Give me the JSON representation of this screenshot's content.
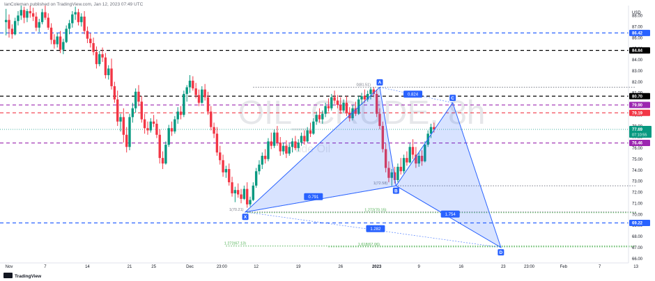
{
  "header": {
    "publisher": "IanColeman published on TradingView.com, Jan 12, 2023 07:49 UTC"
  },
  "footer": {
    "logo_text": "TradingView"
  },
  "watermark": {
    "symbol": "OIL_CRUDE, 8h",
    "name": "Crude Oil"
  },
  "chart_data": {
    "type": "candlestick",
    "currency": "USD",
    "y_range": [
      65.6,
      88.9
    ],
    "y_ticks": [
      66.0,
      67.0,
      68.0,
      69.0,
      70.0,
      71.0,
      72.0,
      73.0,
      74.0,
      75.0,
      76.0,
      77.0,
      78.0,
      79.0,
      80.0,
      81.0,
      82.0,
      83.0,
      84.0,
      85.0,
      86.0,
      87.0,
      88.0
    ],
    "x_ticks": [
      {
        "label": "Nov",
        "day": 0
      },
      {
        "label": "7",
        "day": 6
      },
      {
        "label": "14",
        "day": 13
      },
      {
        "label": "21",
        "day": 20
      },
      {
        "label": "25",
        "day": 24
      },
      {
        "label": "Dec",
        "day": 30
      },
      {
        "label": "23:00",
        "day": 35.3
      },
      {
        "label": "12",
        "day": 41
      },
      {
        "label": "19",
        "day": 48
      },
      {
        "label": "26",
        "day": 55
      },
      {
        "label": "2023",
        "day": 61
      },
      {
        "label": "9",
        "day": 68
      },
      {
        "label": "16",
        "day": 75
      },
      {
        "label": "23",
        "day": 82
      },
      {
        "label": "23:00",
        "day": 86.3
      },
      {
        "label": "Feb",
        "day": 92
      },
      {
        "label": "7",
        "day": 98
      },
      {
        "label": "13",
        "day": 104
      }
    ],
    "price_lines": [
      {
        "value": 86.42,
        "label": "86.42",
        "style": "dashed",
        "color": "#2962ff"
      },
      {
        "value": 84.84,
        "label": "84.84",
        "style": "dashed",
        "color": "#000000"
      },
      {
        "value": 80.7,
        "label": "80.70",
        "style": "dashed",
        "color": "#000000"
      },
      {
        "value": 79.9,
        "label": "79.90",
        "style": "dashed",
        "color": "#9c27b0"
      },
      {
        "value": 79.19,
        "label": "79.19",
        "style": "dashed",
        "color": "#f23645"
      },
      {
        "value": 76.46,
        "label": "76.46",
        "style": "dashed",
        "color": "#9c27b0"
      },
      {
        "value": 69.22,
        "label": "69.22",
        "style": "dashed",
        "color": "#2962ff"
      }
    ],
    "current_price": {
      "value": 77.69,
      "label": "77.69",
      "countdown": "07:10:55",
      "color": "#089981"
    },
    "harmonic_pattern": {
      "color": "#2962ff",
      "points": [
        {
          "name": "X",
          "day": 39.2,
          "value": 70.21
        },
        {
          "name": "A",
          "day": 61.5,
          "value": 81.51
        },
        {
          "name": "B",
          "day": 64.2,
          "value": 72.58
        },
        {
          "name": "C",
          "day": 73.6,
          "value": 80.1
        },
        {
          "name": "D",
          "day": 81.6,
          "value": 67.0
        }
      ],
      "ratios": [
        {
          "label": "0.791",
          "day": 50.5,
          "value": 71.6
        },
        {
          "label": "0.824",
          "day": 67.0,
          "value": 80.88
        },
        {
          "label": "1.754",
          "day": 73.2,
          "value": 70.02
        },
        {
          "label": "1.282",
          "day": 60.8,
          "value": 68.7
        }
      ]
    },
    "fib_levels": [
      {
        "text": "0(81.51)",
        "value": 81.51,
        "color": "#787b86",
        "from": 40.5,
        "to": 104,
        "text_day": 60.0,
        "text_right": true
      },
      {
        "text": "1(72.58)",
        "value": 72.58,
        "color": "#787b86",
        "from": 64.5,
        "to": 104,
        "text_day": 62.8,
        "text_right": true
      },
      {
        "text": "1(70.21)",
        "value": 70.21,
        "color": "#787b86",
        "from": 39.5,
        "to": 104,
        "text_day": 38.9,
        "text_right": true
      },
      {
        "text": "1.272(70.15)",
        "value": 70.15,
        "color": "#4caf50",
        "from": 39.5,
        "to": 104,
        "text_day": 62.6,
        "text_right": true
      },
      {
        "text": "1.272(67.13)",
        "value": 67.13,
        "color": "#4caf50",
        "from": 36.0,
        "to": 104,
        "text_day": 39.3,
        "text_right": true
      },
      {
        "text": "1.618(67.06)",
        "value": 67.06,
        "color": "#4caf50",
        "from": 53.0,
        "to": 104,
        "text_day": 61.5,
        "text_right": true
      }
    ],
    "candles": [
      [
        -0.5,
        87.4,
        88.6,
        86.2,
        87.6
      ],
      [
        0,
        87.6,
        88.1,
        86.0,
        86.8
      ],
      [
        0.5,
        86.8,
        87.2,
        85.9,
        86.3
      ],
      [
        1,
        86.3,
        87.8,
        86.2,
        87.5
      ],
      [
        1.5,
        87.5,
        88.4,
        87.1,
        88.0
      ],
      [
        2,
        88.0,
        88.9,
        87.6,
        88.5
      ],
      [
        2.5,
        88.5,
        88.8,
        87.3,
        87.8
      ],
      [
        3,
        87.8,
        88.6,
        87.4,
        88.4
      ],
      [
        3.5,
        88.4,
        88.9,
        87.8,
        88.2
      ],
      [
        4,
        88.2,
        88.7,
        87.5,
        87.9
      ],
      [
        4.5,
        87.9,
        88.3,
        86.6,
        86.9
      ],
      [
        5,
        86.9,
        87.7,
        86.5,
        87.4
      ],
      [
        5.5,
        87.4,
        88.6,
        87.2,
        88.3
      ],
      [
        6,
        88.3,
        88.9,
        87.6,
        87.8
      ],
      [
        6.5,
        87.8,
        88.2,
        86.7,
        86.9
      ],
      [
        7,
        86.9,
        87.3,
        85.4,
        85.8
      ],
      [
        7.5,
        85.8,
        86.3,
        85.0,
        85.4
      ],
      [
        8,
        85.4,
        86.4,
        85.1,
        86.1
      ],
      [
        8.5,
        86.1,
        86.6,
        84.6,
        84.9
      ],
      [
        9,
        84.9,
        85.9,
        84.5,
        85.6
      ],
      [
        9.5,
        85.6,
        87.1,
        85.5,
        86.8
      ],
      [
        10,
        86.8,
        87.6,
        86.3,
        87.3
      ],
      [
        10.5,
        87.3,
        88.4,
        86.9,
        88.1
      ],
      [
        11,
        88.1,
        88.8,
        87.6,
        88.3
      ],
      [
        11.5,
        88.3,
        88.6,
        87.1,
        87.4
      ],
      [
        12,
        87.4,
        88.2,
        87.0,
        87.9
      ],
      [
        12.5,
        87.9,
        88.4,
        86.3,
        86.6
      ],
      [
        13,
        86.6,
        87.0,
        85.5,
        85.9
      ],
      [
        13.5,
        85.9,
        86.4,
        85.1,
        85.5
      ],
      [
        14,
        85.5,
        86.0,
        84.4,
        84.7
      ],
      [
        14.5,
        84.7,
        85.2,
        83.2,
        83.6
      ],
      [
        15,
        83.6,
        84.8,
        83.4,
        84.5
      ],
      [
        15.5,
        84.5,
        85.1,
        83.8,
        84.2
      ],
      [
        16,
        84.2,
        84.6,
        82.3,
        82.6
      ],
      [
        16.5,
        82.6,
        83.5,
        82.2,
        83.2
      ],
      [
        17,
        83.2,
        84.1,
        81.3,
        81.6
      ],
      [
        17.5,
        81.6,
        82.0,
        80.1,
        80.4
      ],
      [
        18,
        80.4,
        81.2,
        78.0,
        78.4
      ],
      [
        18.5,
        78.4,
        79.1,
        77.5,
        78.8
      ],
      [
        19,
        78.8,
        79.6,
        76.5,
        77.2
      ],
      [
        19.5,
        77.2,
        77.9,
        75.6,
        76.1
      ],
      [
        20,
        76.1,
        79.1,
        75.8,
        78.8
      ],
      [
        20.5,
        78.8,
        80.1,
        78.3,
        79.6
      ],
      [
        21,
        79.6,
        81.4,
        79.2,
        81.1
      ],
      [
        21.5,
        81.1,
        81.7,
        79.8,
        80.2
      ],
      [
        22,
        80.2,
        80.7,
        78.3,
        78.6
      ],
      [
        22.5,
        78.6,
        79.1,
        77.3,
        77.8
      ],
      [
        23,
        77.8,
        78.4,
        77.2,
        77.6
      ],
      [
        23.5,
        77.6,
        78.7,
        77.4,
        78.4
      ],
      [
        24,
        78.4,
        79.0,
        77.9,
        78.2
      ],
      [
        24.5,
        78.2,
        78.6,
        76.9,
        77.2
      ],
      [
        25,
        77.2,
        77.7,
        74.6,
        75.1
      ],
      [
        25.5,
        75.1,
        75.7,
        74.1,
        74.6
      ],
      [
        26,
        74.6,
        76.6,
        74.5,
        76.3
      ],
      [
        26.5,
        76.3,
        78.1,
        76.1,
        77.8
      ],
      [
        27,
        77.8,
        78.4,
        77.1,
        77.5
      ],
      [
        27.5,
        77.5,
        78.9,
        77.3,
        78.6
      ],
      [
        28,
        78.6,
        79.7,
        78.2,
        79.3
      ],
      [
        28.5,
        79.3,
        79.8,
        78.6,
        79.0
      ],
      [
        29,
        79.0,
        81.2,
        78.8,
        80.9
      ],
      [
        29.5,
        80.9,
        81.7,
        80.2,
        81.5
      ],
      [
        30,
        81.5,
        82.6,
        81.0,
        82.1
      ],
      [
        30.5,
        82.1,
        82.5,
        81.2,
        81.4
      ],
      [
        31,
        81.4,
        81.9,
        80.5,
        80.8
      ],
      [
        31.5,
        80.8,
        81.3,
        79.8,
        80.1
      ],
      [
        32,
        80.1,
        81.6,
        80.0,
        81.3
      ],
      [
        32.5,
        81.3,
        81.8,
        80.3,
        80.6
      ],
      [
        33,
        80.6,
        81.1,
        79.0,
        79.3
      ],
      [
        33.5,
        79.3,
        79.8,
        77.6,
        77.9
      ],
      [
        34,
        77.9,
        78.3,
        76.9,
        77.3
      ],
      [
        34.5,
        77.3,
        77.9,
        75.3,
        75.6
      ],
      [
        35,
        75.6,
        76.2,
        74.5,
        74.9
      ],
      [
        35.5,
        74.9,
        75.4,
        73.4,
        73.8
      ],
      [
        36,
        73.8,
        74.4,
        73.3,
        74.1
      ],
      [
        36.5,
        74.1,
        74.6,
        72.6,
        72.9
      ],
      [
        37,
        72.9,
        73.4,
        71.6,
        71.9
      ],
      [
        37.5,
        71.9,
        72.5,
        71.1,
        72.2
      ],
      [
        38,
        72.2,
        72.8,
        71.5,
        71.8
      ],
      [
        38.5,
        71.8,
        72.3,
        71.0,
        71.4
      ],
      [
        39,
        71.4,
        72.6,
        71.3,
        72.3
      ],
      [
        39.5,
        72.3,
        72.9,
        70.6,
        70.9
      ],
      [
        40,
        70.9,
        71.6,
        70.7,
        71.3
      ],
      [
        40.5,
        71.3,
        72.9,
        71.2,
        72.6
      ],
      [
        41,
        72.6,
        74.2,
        72.4,
        73.9
      ],
      [
        41.5,
        73.9,
        74.9,
        73.6,
        74.5
      ],
      [
        42,
        74.5,
        75.6,
        74.1,
        75.3
      ],
      [
        42.5,
        75.3,
        75.9,
        74.6,
        75.0
      ],
      [
        43,
        75.0,
        76.9,
        74.8,
        76.6
      ],
      [
        43.5,
        76.6,
        77.4,
        75.9,
        76.2
      ],
      [
        44,
        76.2,
        77.7,
        76.0,
        77.4
      ],
      [
        44.5,
        77.4,
        78.0,
        76.2,
        76.5
      ],
      [
        45,
        76.5,
        77.0,
        75.3,
        75.7
      ],
      [
        45.5,
        75.7,
        76.5,
        75.4,
        76.2
      ],
      [
        46,
        76.2,
        76.7,
        75.1,
        75.5
      ],
      [
        46.5,
        75.5,
        76.4,
        75.3,
        76.1
      ],
      [
        47,
        76.1,
        76.9,
        75.6,
        76.6
      ],
      [
        47.5,
        76.6,
        77.1,
        75.8,
        76.0
      ],
      [
        48,
        76.0,
        76.8,
        75.7,
        76.5
      ],
      [
        48.5,
        76.5,
        77.4,
        76.2,
        77.1
      ],
      [
        49,
        77.1,
        77.6,
        76.3,
        76.6
      ],
      [
        49.5,
        76.6,
        77.9,
        76.5,
        77.6
      ],
      [
        50,
        77.6,
        78.3,
        77.0,
        77.3
      ],
      [
        50.5,
        77.3,
        78.7,
        77.2,
        78.4
      ],
      [
        51,
        78.4,
        79.3,
        78.1,
        79.0
      ],
      [
        51.5,
        79.0,
        79.6,
        78.3,
        78.6
      ],
      [
        52,
        78.6,
        79.4,
        78.2,
        79.1
      ],
      [
        52.5,
        79.1,
        80.1,
        78.8,
        79.8
      ],
      [
        53,
        79.8,
        80.5,
        79.3,
        79.6
      ],
      [
        53.5,
        79.6,
        80.9,
        79.4,
        80.6
      ],
      [
        54,
        80.6,
        81.2,
        80.0,
        80.3
      ],
      [
        54.5,
        80.3,
        80.8,
        79.6,
        79.9
      ],
      [
        55,
        79.9,
        80.6,
        79.1,
        79.4
      ],
      [
        55.5,
        79.4,
        80.4,
        79.2,
        80.1
      ],
      [
        56,
        80.1,
        80.7,
        78.9,
        79.2
      ],
      [
        56.5,
        79.2,
        79.7,
        78.4,
        78.7
      ],
      [
        57,
        78.7,
        79.9,
        78.5,
        79.6
      ],
      [
        57.5,
        79.6,
        80.2,
        78.9,
        79.1
      ],
      [
        58,
        79.1,
        80.7,
        79.0,
        80.4
      ],
      [
        58.5,
        80.4,
        81.0,
        79.9,
        80.7
      ],
      [
        59,
        80.7,
        81.3,
        80.1,
        80.4
      ],
      [
        59.5,
        80.4,
        81.2,
        80.2,
        80.9
      ],
      [
        60,
        80.9,
        81.5,
        80.4,
        81.3
      ],
      [
        60.5,
        81.3,
        81.51,
        80.6,
        80.9
      ],
      [
        61,
        80.9,
        81.3,
        78.8,
        79.1
      ],
      [
        61.5,
        79.1,
        79.6,
        77.7,
        78.0
      ],
      [
        62,
        78.0,
        78.4,
        75.6,
        75.9
      ],
      [
        62.5,
        75.9,
        76.4,
        73.8,
        74.2
      ],
      [
        63,
        74.2,
        74.8,
        72.9,
        73.3
      ],
      [
        63.5,
        73.3,
        74.1,
        72.58,
        73.8
      ],
      [
        64,
        73.8,
        74.3,
        72.8,
        73.1
      ],
      [
        64.5,
        73.1,
        74.6,
        72.9,
        74.3
      ],
      [
        65,
        74.3,
        75.1,
        73.6,
        73.9
      ],
      [
        65.5,
        73.9,
        75.4,
        73.7,
        75.1
      ],
      [
        66,
        75.1,
        75.7,
        74.4,
        74.7
      ],
      [
        66.5,
        74.7,
        76.4,
        74.6,
        76.1
      ],
      [
        67,
        76.1,
        76.8,
        75.0,
        75.4
      ],
      [
        67.5,
        75.4,
        76.1,
        74.2,
        74.6
      ],
      [
        68,
        74.6,
        75.6,
        74.3,
        75.3
      ],
      [
        68.5,
        75.3,
        75.8,
        74.4,
        74.8
      ],
      [
        69,
        74.8,
        76.6,
        74.7,
        76.3
      ],
      [
        69.5,
        76.3,
        77.6,
        76.1,
        77.3
      ],
      [
        70,
        77.3,
        78.2,
        76.9,
        77.9
      ],
      [
        70.5,
        77.9,
        78.3,
        77.4,
        77.69
      ]
    ]
  }
}
